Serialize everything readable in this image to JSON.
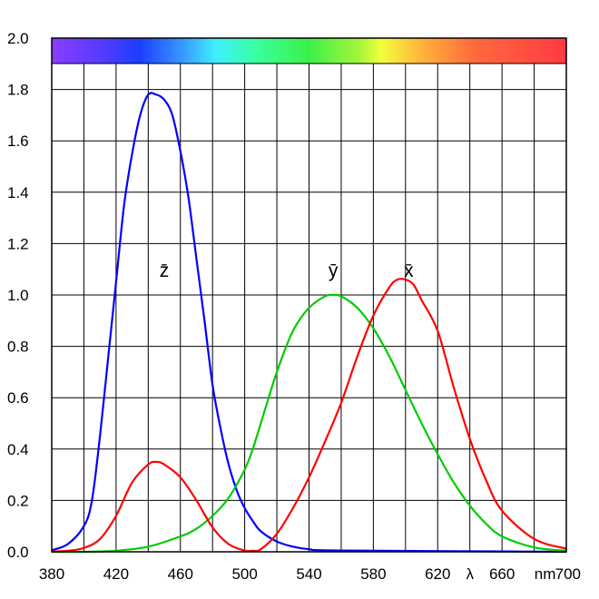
{
  "chart_data": {
    "type": "line",
    "x_unit": "nm",
    "x_symbol": "λ",
    "xlim": [
      380,
      700
    ],
    "ylim": [
      0,
      2.0
    ],
    "grid": true,
    "color_strip": true,
    "x_ticks": [
      "380",
      "420",
      "460",
      "500",
      "540",
      "580",
      "620",
      "660",
      "700"
    ],
    "y_ticks": [
      "0.0",
      "0.2",
      "0.4",
      "0.6",
      "0.8",
      "1.0",
      "1.2",
      "1.4",
      "1.6",
      "1.8",
      "2.0"
    ],
    "series": [
      {
        "name": "z̄",
        "color": "#0000ff",
        "x": [
          380,
          390,
          400,
          405,
          410,
          415,
          420,
          425,
          430,
          435,
          440,
          445,
          450,
          455,
          460,
          465,
          470,
          475,
          480,
          485,
          490,
          495,
          500,
          505,
          510,
          520,
          530,
          540,
          560,
          700
        ],
        "y": [
          0.006,
          0.03,
          0.1,
          0.2,
          0.45,
          0.75,
          1.05,
          1.35,
          1.55,
          1.7,
          1.78,
          1.78,
          1.76,
          1.7,
          1.56,
          1.38,
          1.14,
          0.9,
          0.65,
          0.48,
          0.34,
          0.24,
          0.17,
          0.12,
          0.08,
          0.04,
          0.02,
          0.01,
          0.005,
          0.0
        ]
      },
      {
        "name": "ȳ",
        "color": "#00cc00",
        "x": [
          380,
          400,
          420,
          440,
          460,
          470,
          480,
          490,
          500,
          505,
          510,
          520,
          530,
          540,
          550,
          555,
          560,
          570,
          580,
          590,
          600,
          610,
          620,
          630,
          640,
          650,
          660,
          680,
          700
        ],
        "y": [
          0.0,
          0.0,
          0.004,
          0.02,
          0.06,
          0.09,
          0.14,
          0.21,
          0.32,
          0.4,
          0.5,
          0.7,
          0.86,
          0.95,
          0.995,
          1.0,
          0.995,
          0.95,
          0.87,
          0.76,
          0.63,
          0.5,
          0.38,
          0.27,
          0.18,
          0.11,
          0.06,
          0.017,
          0.004
        ]
      },
      {
        "name": "x̄",
        "color": "#ff0000",
        "x": [
          380,
          390,
          400,
          410,
          420,
          430,
          440,
          445,
          450,
          460,
          470,
          480,
          490,
          500,
          505,
          510,
          520,
          530,
          540,
          550,
          560,
          570,
          580,
          590,
          595,
          600,
          605,
          610,
          620,
          630,
          640,
          650,
          660,
          680,
          700
        ],
        "y": [
          0.001,
          0.004,
          0.015,
          0.05,
          0.14,
          0.27,
          0.34,
          0.35,
          0.34,
          0.29,
          0.2,
          0.095,
          0.03,
          0.005,
          0.004,
          0.01,
          0.07,
          0.17,
          0.29,
          0.43,
          0.58,
          0.76,
          0.92,
          1.03,
          1.06,
          1.06,
          1.04,
          0.98,
          0.86,
          0.64,
          0.44,
          0.28,
          0.16,
          0.05,
          0.012
        ]
      }
    ]
  }
}
